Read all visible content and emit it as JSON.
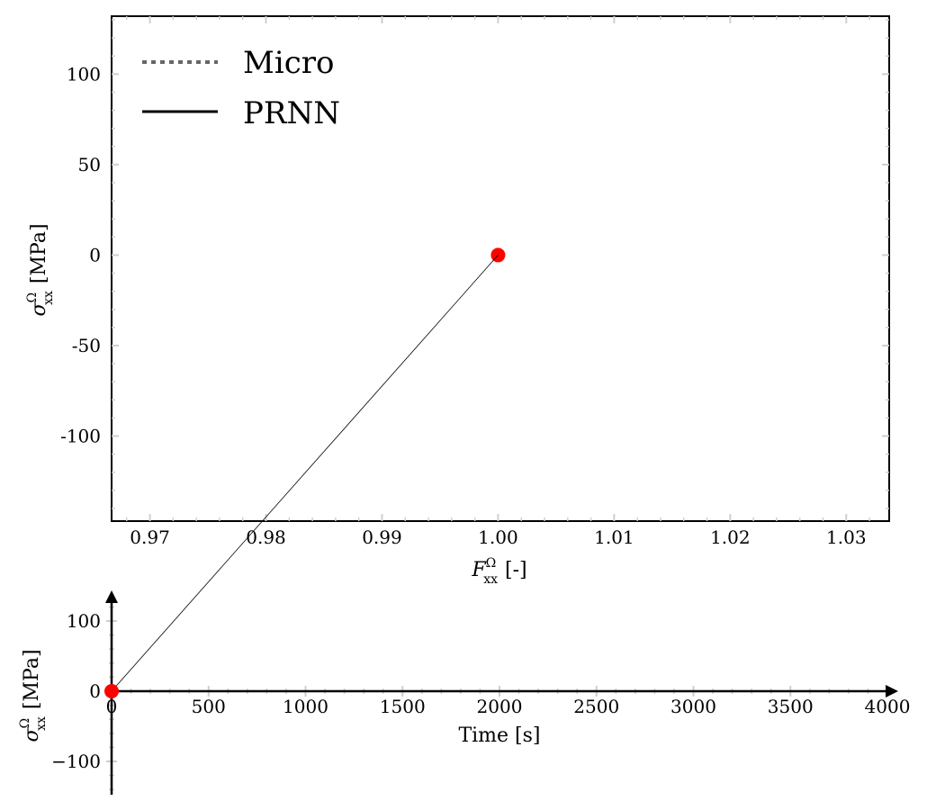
{
  "chart_data": [
    {
      "type": "line",
      "panel": "stress-strain",
      "xlabel_main": "F",
      "xlabel_sup": "Ω",
      "xlabel_sub": "xx",
      "xlabel_unit": "[-]",
      "ylabel_main": "σ",
      "ylabel_sup": "Ω",
      "ylabel_sub": "xx",
      "ylabel_unit": "[MPa]",
      "xlim": [
        0.9667,
        1.0337
      ],
      "ylim": [
        -147,
        132
      ],
      "xticks": [
        0.97,
        0.98,
        0.99,
        1.0,
        1.01,
        1.02,
        1.03
      ],
      "xtick_labels": [
        "0.97",
        "0.98",
        "0.99",
        "1.00",
        "1.01",
        "1.02",
        "1.03"
      ],
      "yticks": [
        100,
        50,
        0,
        -50,
        -100
      ],
      "ytick_labels": [
        "100",
        "50",
        "0",
        "-50",
        "-100"
      ],
      "legend_location": "top-left",
      "legend": [
        {
          "name": "Micro",
          "style": "dotted",
          "color": "#666666"
        },
        {
          "name": "PRNN",
          "style": "solid",
          "color": "#000000"
        }
      ],
      "current_point": {
        "x": 1.0,
        "y": 0,
        "color": "#ff0000"
      }
    },
    {
      "type": "line",
      "panel": "stress-time",
      "xlabel": "Time [s]",
      "ylabel_main": "σ",
      "ylabel_sup": "Ω",
      "ylabel_sub": "xx",
      "ylabel_unit": "[MPa]",
      "xlim": [
        0,
        4000
      ],
      "ylim": [
        -150,
        140
      ],
      "xticks": [
        0,
        500,
        1000,
        1500,
        2000,
        2500,
        3000,
        3500,
        4000
      ],
      "xtick_labels": [
        "0",
        "500",
        "1000",
        "1500",
        "2000",
        "2500",
        "3000",
        "3500",
        "4000"
      ],
      "yticks": [
        100,
        0,
        -100
      ],
      "ytick_labels": [
        "100",
        "0",
        "−100"
      ],
      "current_point": {
        "x": 0,
        "y": 0,
        "color": "#ff0000"
      }
    }
  ]
}
